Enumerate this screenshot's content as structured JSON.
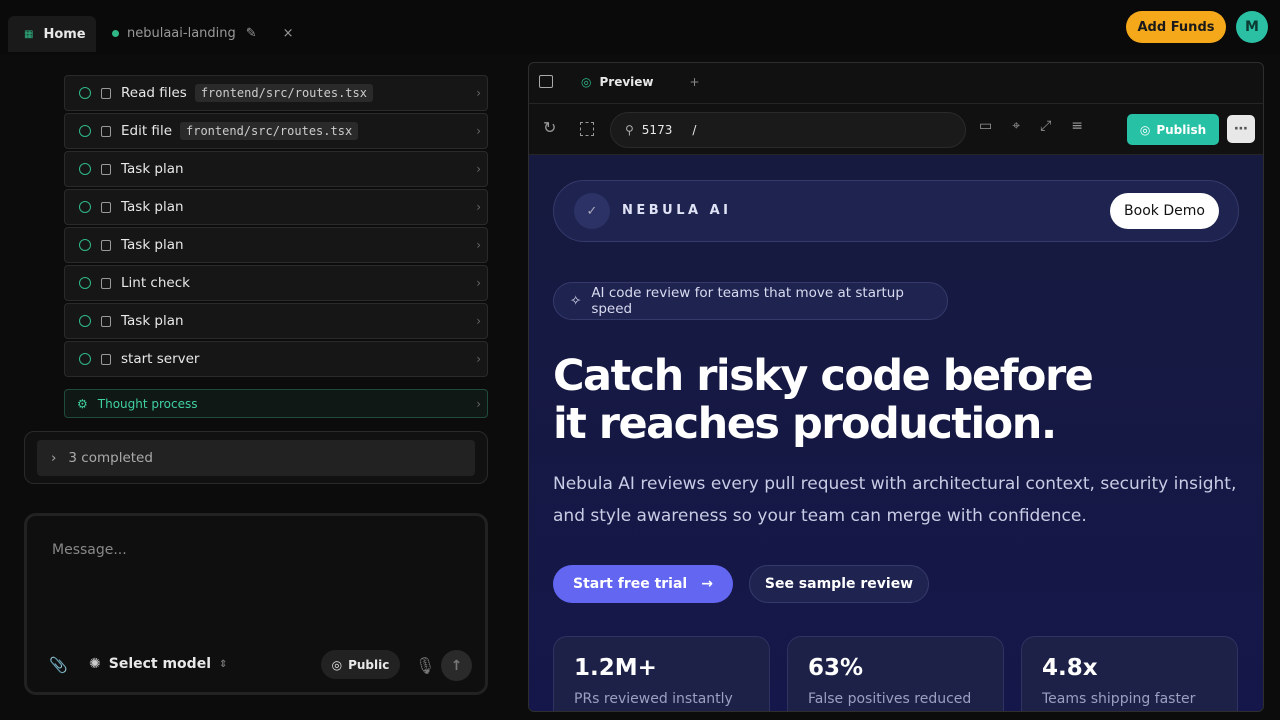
{
  "tabs": {
    "home": "Home",
    "project": "nebulaai-landing"
  },
  "header": {
    "add_funds": "Add Funds",
    "avatar": "M"
  },
  "steps": [
    {
      "label": "Read files",
      "code": "frontend/src/routes.tsx"
    },
    {
      "label": "Edit file",
      "code": "frontend/src/routes.tsx"
    },
    {
      "label": "Task plan"
    },
    {
      "label": "Task plan"
    },
    {
      "label": "Task plan"
    },
    {
      "label": "Lint check"
    },
    {
      "label": "Task plan"
    },
    {
      "label": "start server"
    }
  ],
  "thought": "Thought process",
  "completed": "3 completed",
  "composer": {
    "placeholder": "Message...",
    "model": "Select model",
    "visibility": "Public"
  },
  "preview": {
    "tab": "Preview",
    "port": "5173",
    "path": "/",
    "publish": "Publish"
  },
  "site": {
    "brand": "NEBULA AI",
    "demo": "Book Demo",
    "badge": "AI code review for teams that move at startup speed",
    "headline": "Catch risky code before it reaches production.",
    "lead": "Nebula AI reviews every pull request with architectural context, security insight, and style awareness so your team can merge with confidence.",
    "cta_primary": "Start free trial",
    "cta_secondary": "See sample review",
    "stats": [
      {
        "value": "1.2M+",
        "label": "PRs reviewed instantly"
      },
      {
        "value": "63%",
        "label": "False positives reduced"
      },
      {
        "value": "4.8x",
        "label": "Teams shipping faster"
      }
    ]
  }
}
